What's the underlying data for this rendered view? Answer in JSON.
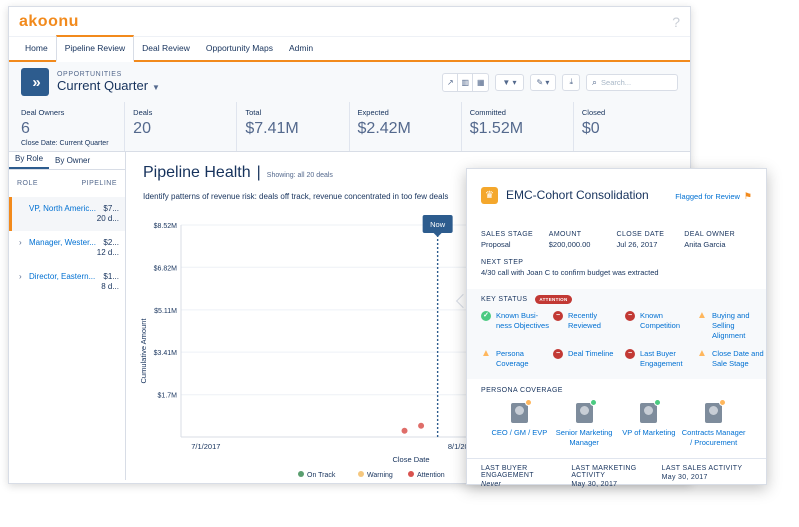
{
  "app": {
    "logo": "akoonu"
  },
  "nav": [
    "Home",
    "Pipeline Review",
    "Deal Review",
    "Opportunity Maps",
    "Admin"
  ],
  "header": {
    "object_label": "OPPORTUNITIES",
    "title": "Current Quarter",
    "search_placeholder": "Search..."
  },
  "metrics": [
    {
      "label": "Deal Owners",
      "value": "6",
      "sub": "Close Date: Current Quarter"
    },
    {
      "label": "Deals",
      "value": "20"
    },
    {
      "label": "Total",
      "value": "$7.41M"
    },
    {
      "label": "Expected",
      "value": "$2.42M"
    },
    {
      "label": "Committed",
      "value": "$1.52M"
    },
    {
      "label": "Closed",
      "value": "$0"
    }
  ],
  "sidebar": {
    "tabs": [
      "By Role",
      "By Owner"
    ],
    "col_role": "ROLE",
    "col_pipeline": "PIPELINE",
    "rows": [
      {
        "name": "VP, North Americ...",
        "value": "$7...",
        "sub": "20 d..."
      },
      {
        "name": "Manager, Wester...",
        "value": "$2...",
        "sub": "12 d..."
      },
      {
        "name": "Director, Eastern...",
        "value": "$1...",
        "sub": "8 d..."
      }
    ]
  },
  "chart": {
    "title": "Pipeline Health",
    "showing": "Showing: all 20 deals",
    "description": "Identify patterns of revenue risk: deals off track, revenue concentrated in too few deals",
    "now_label": "Now",
    "faint_label": "n Trac",
    "legend": [
      "On Track",
      "Warning",
      "Attention"
    ]
  },
  "chart_data": {
    "type": "scatter",
    "title": "Pipeline Health",
    "xlabel": "Close Date",
    "ylabel": "Cumulative Amount",
    "x_ticks": [
      "7/1/2017",
      "8/1/2017"
    ],
    "y_ticks": [
      "$1.7M",
      "$3.41M",
      "$5.11M",
      "$6.82M",
      "$8.52M"
    ],
    "y_tick_values": [
      1.7,
      3.41,
      5.11,
      6.82,
      8.52
    ],
    "x_range": [
      "2017-06-28",
      "2017-08-28"
    ],
    "y_range": [
      0,
      8.52
    ],
    "now": "2017-07-29",
    "points": [
      {
        "x": "2017-07-25",
        "y": 0.25,
        "status": "Attention",
        "size": "small"
      },
      {
        "x": "2017-07-27",
        "y": 0.45,
        "status": "Attention",
        "size": "small"
      },
      {
        "x": "2017-08-03",
        "y": 0.85,
        "status": "Warning",
        "size": "large"
      },
      {
        "x": "2017-08-04",
        "y": 1.05,
        "status": "Warning",
        "size": "small"
      },
      {
        "x": "2017-08-08",
        "y": 1.3,
        "status": "Warning",
        "size": "small"
      },
      {
        "x": "2017-08-10",
        "y": 1.55,
        "status": "Warning",
        "size": "small"
      },
      {
        "x": "2017-08-12",
        "y": 1.7,
        "status": "On Track",
        "size": "small"
      },
      {
        "x": "2017-08-22",
        "y": 5.6,
        "status": "Attention",
        "size": "small"
      }
    ]
  },
  "card": {
    "title": "EMC-Cohort Consolidation",
    "flagged": "Flagged for Review",
    "fields": [
      {
        "label": "SALES STAGE",
        "value": "Proposal"
      },
      {
        "label": "AMOUNT",
        "value": "$200,000.00"
      },
      {
        "label": "CLOSE DATE",
        "value": "Jul 26, 2017"
      },
      {
        "label": "DEAL OWNER",
        "value": "Anita Garcia"
      }
    ],
    "next_step_label": "NEXT STEP",
    "next_step": "4/30 call with Joan C to confirm budget was extracted",
    "key_status_label": "KEY STATUS",
    "key_status_badge": "ATTENTION",
    "statuses": [
      {
        "label": "Known Busi-ness Objectives",
        "state": "ok"
      },
      {
        "label": "Recently Reviewed",
        "state": "bad"
      },
      {
        "label": "Known Competition",
        "state": "bad"
      },
      {
        "label": "Buying and Selling Alignment",
        "state": "warn"
      },
      {
        "label": "Persona Coverage",
        "state": "warn"
      },
      {
        "label": "Deal Timeline",
        "state": "bad"
      },
      {
        "label": "Last Buyer Engagement",
        "state": "bad"
      },
      {
        "label": "Close Date and Sale Stage",
        "state": "warn"
      }
    ],
    "persona_label": "PERSONA COVERAGE",
    "personas": [
      {
        "name": "CEO / GM / EVP",
        "state": "warn"
      },
      {
        "name": "Senior Marketing Manager",
        "state": "ok"
      },
      {
        "name": "VP of Marketing",
        "state": "ok"
      },
      {
        "name": "Contracts Manager / Procurement",
        "state": "warn"
      }
    ],
    "engagement": [
      {
        "label": "LAST BUYER ENGAGEMENT",
        "value": "Never",
        "italic": true
      },
      {
        "label": "LAST MARKETING ACTIVITY",
        "value": "May 30, 2017"
      },
      {
        "label": "LAST SALES ACTIVITY",
        "value": "May 30, 2017"
      }
    ]
  },
  "colors": {
    "accent": "#f28a1c",
    "on_track": "#5a9e6f",
    "warning": "#f5c77e",
    "attention": "#d9534f"
  }
}
